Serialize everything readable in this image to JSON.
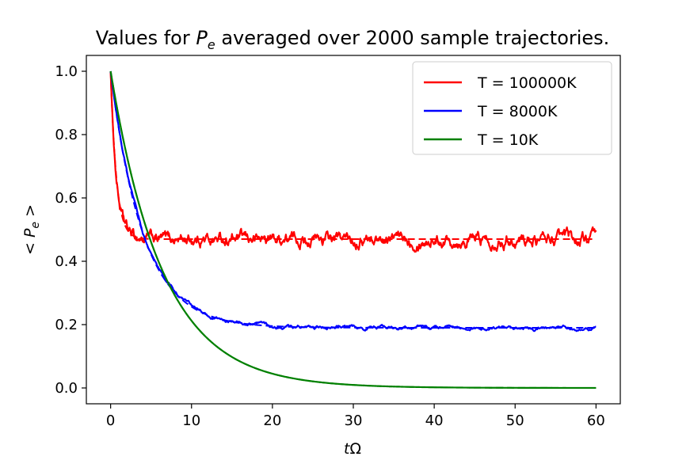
{
  "chart_data": {
    "type": "line",
    "title": {
      "prefix": "Values for ",
      "var_base": "P",
      "var_sub": "e",
      "suffix": " averaged over 2000 sample trajectories."
    },
    "xlabel": {
      "var": "t",
      "rest": "Ω"
    },
    "ylabel": {
      "open": "< ",
      "var_base": "P",
      "var_sub": "e",
      "close": " >"
    },
    "xlim": [
      -3,
      63
    ],
    "ylim": [
      -0.05,
      1.05
    ],
    "xticks": [
      0,
      10,
      20,
      30,
      40,
      50,
      60
    ],
    "xtick_labels": [
      "0",
      "10",
      "20",
      "30",
      "40",
      "50",
      "60"
    ],
    "yticks": [
      0.0,
      0.2,
      0.4,
      0.6,
      0.8,
      1.0
    ],
    "ytick_labels": [
      "0.0",
      "0.2",
      "0.4",
      "0.6",
      "0.8",
      "1.0"
    ],
    "grid": false,
    "legend_position": "top-right",
    "series": [
      {
        "name": "T = 100000K",
        "color": "#ff0000",
        "rate": 1.4,
        "steady": 0.47,
        "noise": 0.012,
        "noise_wavelength": 0.45
      },
      {
        "name": "T = 8000K",
        "color": "#0000ff",
        "rate": 0.25,
        "steady": 0.19,
        "noise": 0.006,
        "noise_wavelength": 0.9
      },
      {
        "name": "T = 10K",
        "color": "#008000",
        "rate": 0.155,
        "steady": 0.0,
        "noise": 0.0,
        "noise_wavelength": 1.0
      }
    ],
    "x_range": [
      0,
      60
    ]
  }
}
